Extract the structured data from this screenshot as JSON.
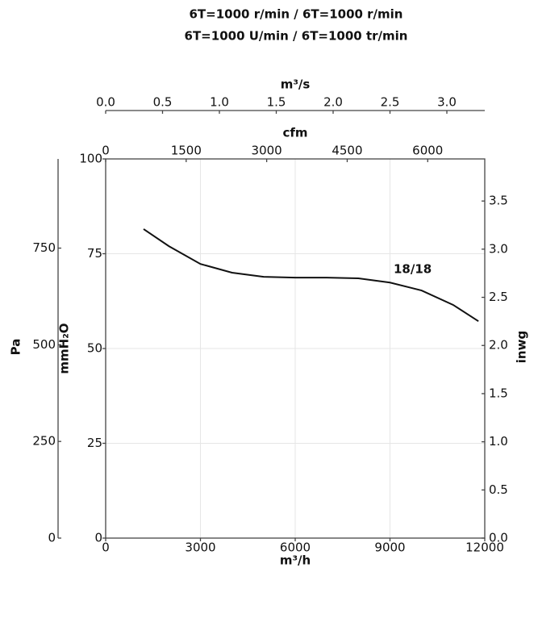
{
  "chart_data": {
    "type": "line",
    "title": "6T=1000 r/min / 6T=1000 r/min",
    "subtitle": "6T=1000 U/min / 6T=1000 tr/min",
    "xlabel": "m³/h",
    "ylabel": "mmH₂O",
    "x": [
      1200,
      2000,
      3000,
      4000,
      5000,
      6000,
      7000,
      8000,
      9000,
      10000,
      11000,
      11800
    ],
    "series": [
      {
        "name": "18/18",
        "color": "#111111",
        "values": [
          81.5,
          77.0,
          72.3,
          70.0,
          68.9,
          68.7,
          68.7,
          68.5,
          67.4,
          65.3,
          61.5,
          57.2
        ]
      }
    ],
    "xlim": [
      0,
      12000
    ],
    "xticks": [
      0,
      3000,
      6000,
      9000,
      12000
    ],
    "ylim": [
      0,
      100
    ],
    "yticks": [
      0,
      25,
      50,
      75,
      100
    ],
    "grid": true,
    "extra_axes": [
      {
        "side": "left",
        "label": "Pa",
        "lim": [
          0,
          980.665
        ],
        "ticks": [
          0,
          250,
          500,
          750
        ]
      },
      {
        "side": "right",
        "label": "inwg",
        "lim": [
          0,
          3.937
        ],
        "ticks": [
          {
            "value": 0,
            "label": "0.0"
          },
          0.5,
          {
            "value": 1,
            "label": "1.0"
          },
          1.5,
          {
            "value": 2,
            "label": "2.0"
          },
          2.5,
          {
            "value": 3,
            "label": "3.0"
          },
          3.5
        ]
      },
      {
        "side": "top",
        "label": "cfm",
        "lim": [
          0,
          7063
        ],
        "ticks": [
          0,
          1500,
          3000,
          4500,
          6000
        ]
      },
      {
        "side": "top-outer",
        "label": "m³/s",
        "lim": [
          0,
          3.3333
        ],
        "ticks": [
          {
            "value": 0,
            "label": "0.0"
          },
          0.5,
          {
            "value": 1,
            "label": "1.0"
          },
          1.5,
          {
            "value": 2,
            "label": "2.0"
          },
          2.5,
          {
            "value": 3,
            "label": "3.0"
          }
        ]
      }
    ]
  }
}
